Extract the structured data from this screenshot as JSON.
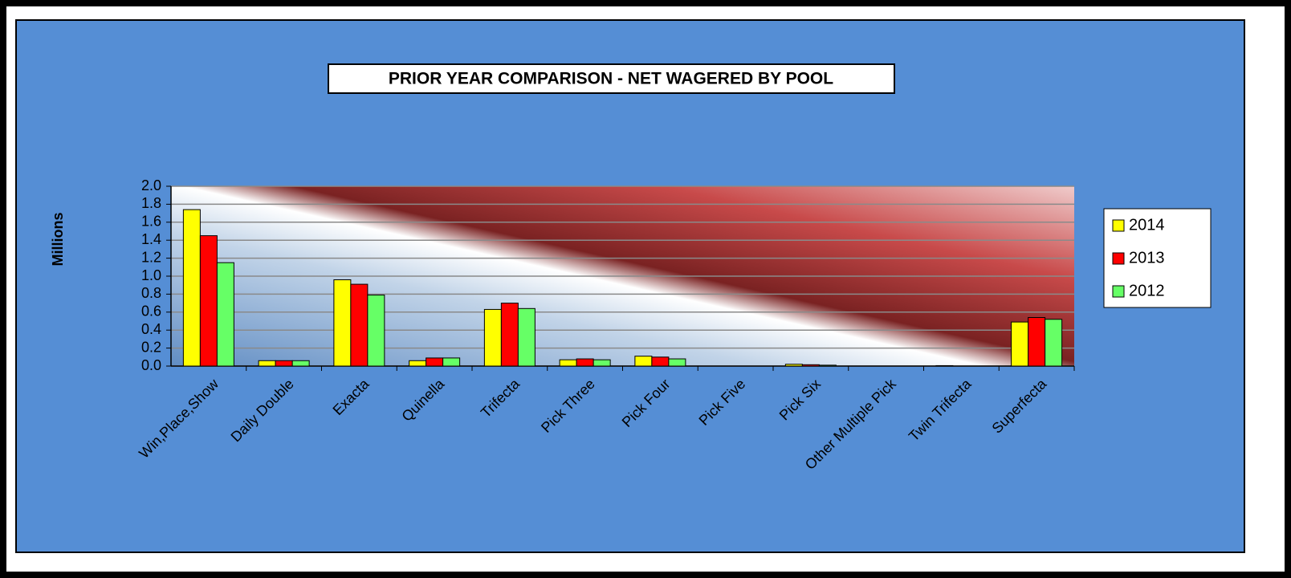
{
  "chart_data": {
    "type": "bar",
    "title": "PRIOR YEAR COMPARISON - NET WAGERED BY POOL",
    "y_label": "Millions",
    "categories": [
      "Win,Place,Show",
      "Daily Double",
      "Exacta",
      "Quinella",
      "Trifecta",
      "Pick Three",
      "Pick Four",
      "Pick Five",
      "Pick Six",
      "Other Multiple Pick",
      "Twin Trifecta",
      "Superfecta"
    ],
    "series": [
      {
        "name": "2014",
        "color": "#ffff00",
        "values": [
          1.74,
          0.06,
          0.96,
          0.06,
          0.63,
          0.07,
          0.11,
          0,
          0.02,
          0,
          0.005,
          0.49
        ]
      },
      {
        "name": "2013",
        "color": "#ff0000",
        "values": [
          1.45,
          0.06,
          0.91,
          0.09,
          0.7,
          0.08,
          0.1,
          0,
          0.015,
          0,
          0,
          0.54
        ]
      },
      {
        "name": "2012",
        "color": "#66ff66",
        "values": [
          1.15,
          0.06,
          0.79,
          0.09,
          0.64,
          0.07,
          0.08,
          0,
          0.01,
          0,
          0,
          0.52
        ]
      }
    ],
    "ylim": [
      0,
      2
    ],
    "yticks": [
      {
        "value": 0,
        "label": "0.0"
      },
      0.2,
      0.4,
      0.6,
      0.8,
      {
        "value": 1,
        "label": "1.0"
      },
      1.2,
      1.4,
      1.6,
      1.8,
      {
        "value": 2,
        "label": "2.0"
      }
    ],
    "grid": true,
    "legend": "right"
  }
}
